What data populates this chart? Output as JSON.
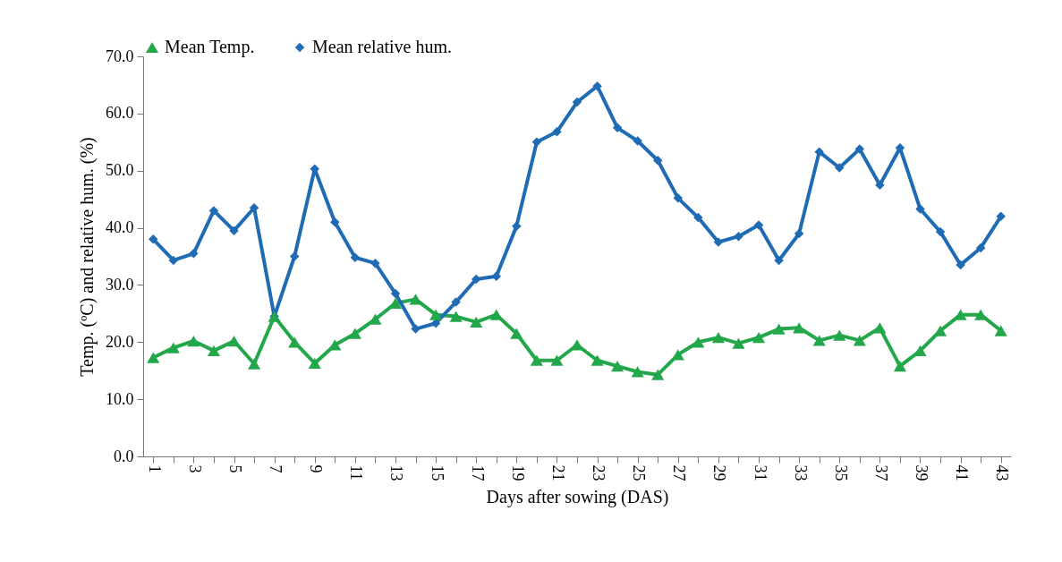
{
  "chart_data": {
    "type": "line",
    "xlabel": "Days after sowing (DAS)",
    "ylabel": "Temp. (ºC) and relative hum. (%)",
    "categories": [
      "1",
      null,
      "3",
      null,
      "5",
      null,
      "7",
      null,
      "9",
      null,
      "11",
      null,
      "13",
      null,
      "15",
      null,
      "17",
      null,
      "19",
      null,
      "21",
      null,
      "23",
      null,
      "25",
      null,
      "27",
      null,
      "29",
      null,
      "31",
      null,
      "33",
      null,
      "35",
      null,
      "37",
      null,
      "39",
      null,
      "41",
      null,
      "43"
    ],
    "series": [
      {
        "name": "Mean Temp.",
        "color": "#22a84a",
        "marker": "triangle",
        "values": [
          17.3,
          19,
          20.2,
          18.5,
          20.2,
          16.2,
          24.5,
          20,
          16.3,
          19.5,
          21.5,
          24,
          26.8,
          27.5,
          24.8,
          24.5,
          23.5,
          24.8,
          21.5,
          16.8,
          16.8,
          19.5,
          16.8,
          15.8,
          14.8,
          14.3,
          17.8,
          20,
          20.8,
          19.8,
          20.8,
          22.3,
          22.5,
          20.3,
          21.2,
          20.3,
          22.5,
          15.8,
          18.5,
          22,
          24.8,
          24.8,
          22
        ]
      },
      {
        "name": "Mean relative hum.",
        "color": "#1f6bb4",
        "marker": "diamond",
        "values": [
          38,
          34.3,
          35.5,
          43,
          39.5,
          43.5,
          24.5,
          35,
          50.3,
          41,
          34.8,
          33.8,
          28.5,
          22.3,
          23.3,
          27,
          31,
          31.5,
          40.3,
          55,
          56.8,
          62,
          64.8,
          57.5,
          55.2,
          51.8,
          45.2,
          41.8,
          37.5,
          38.5,
          40.5,
          34.3,
          39,
          53.3,
          50.5,
          53.8,
          47.5,
          54,
          43.3,
          39.3,
          33.5,
          36.5,
          42
        ]
      }
    ],
    "ylim": [
      0,
      70
    ],
    "yticks": [
      {
        "value": 0,
        "label": "0.0"
      },
      {
        "value": 10,
        "label": "10.0"
      },
      {
        "value": 20,
        "label": "20.0"
      },
      {
        "value": 30,
        "label": "30.0"
      },
      {
        "value": 40,
        "label": "40.0"
      },
      {
        "value": 50,
        "label": "50.0"
      },
      {
        "value": 60,
        "label": "60.0"
      },
      {
        "value": 70,
        "label": "70.0"
      }
    ],
    "legend": "top",
    "grid": false,
    "line_style": "solid"
  }
}
